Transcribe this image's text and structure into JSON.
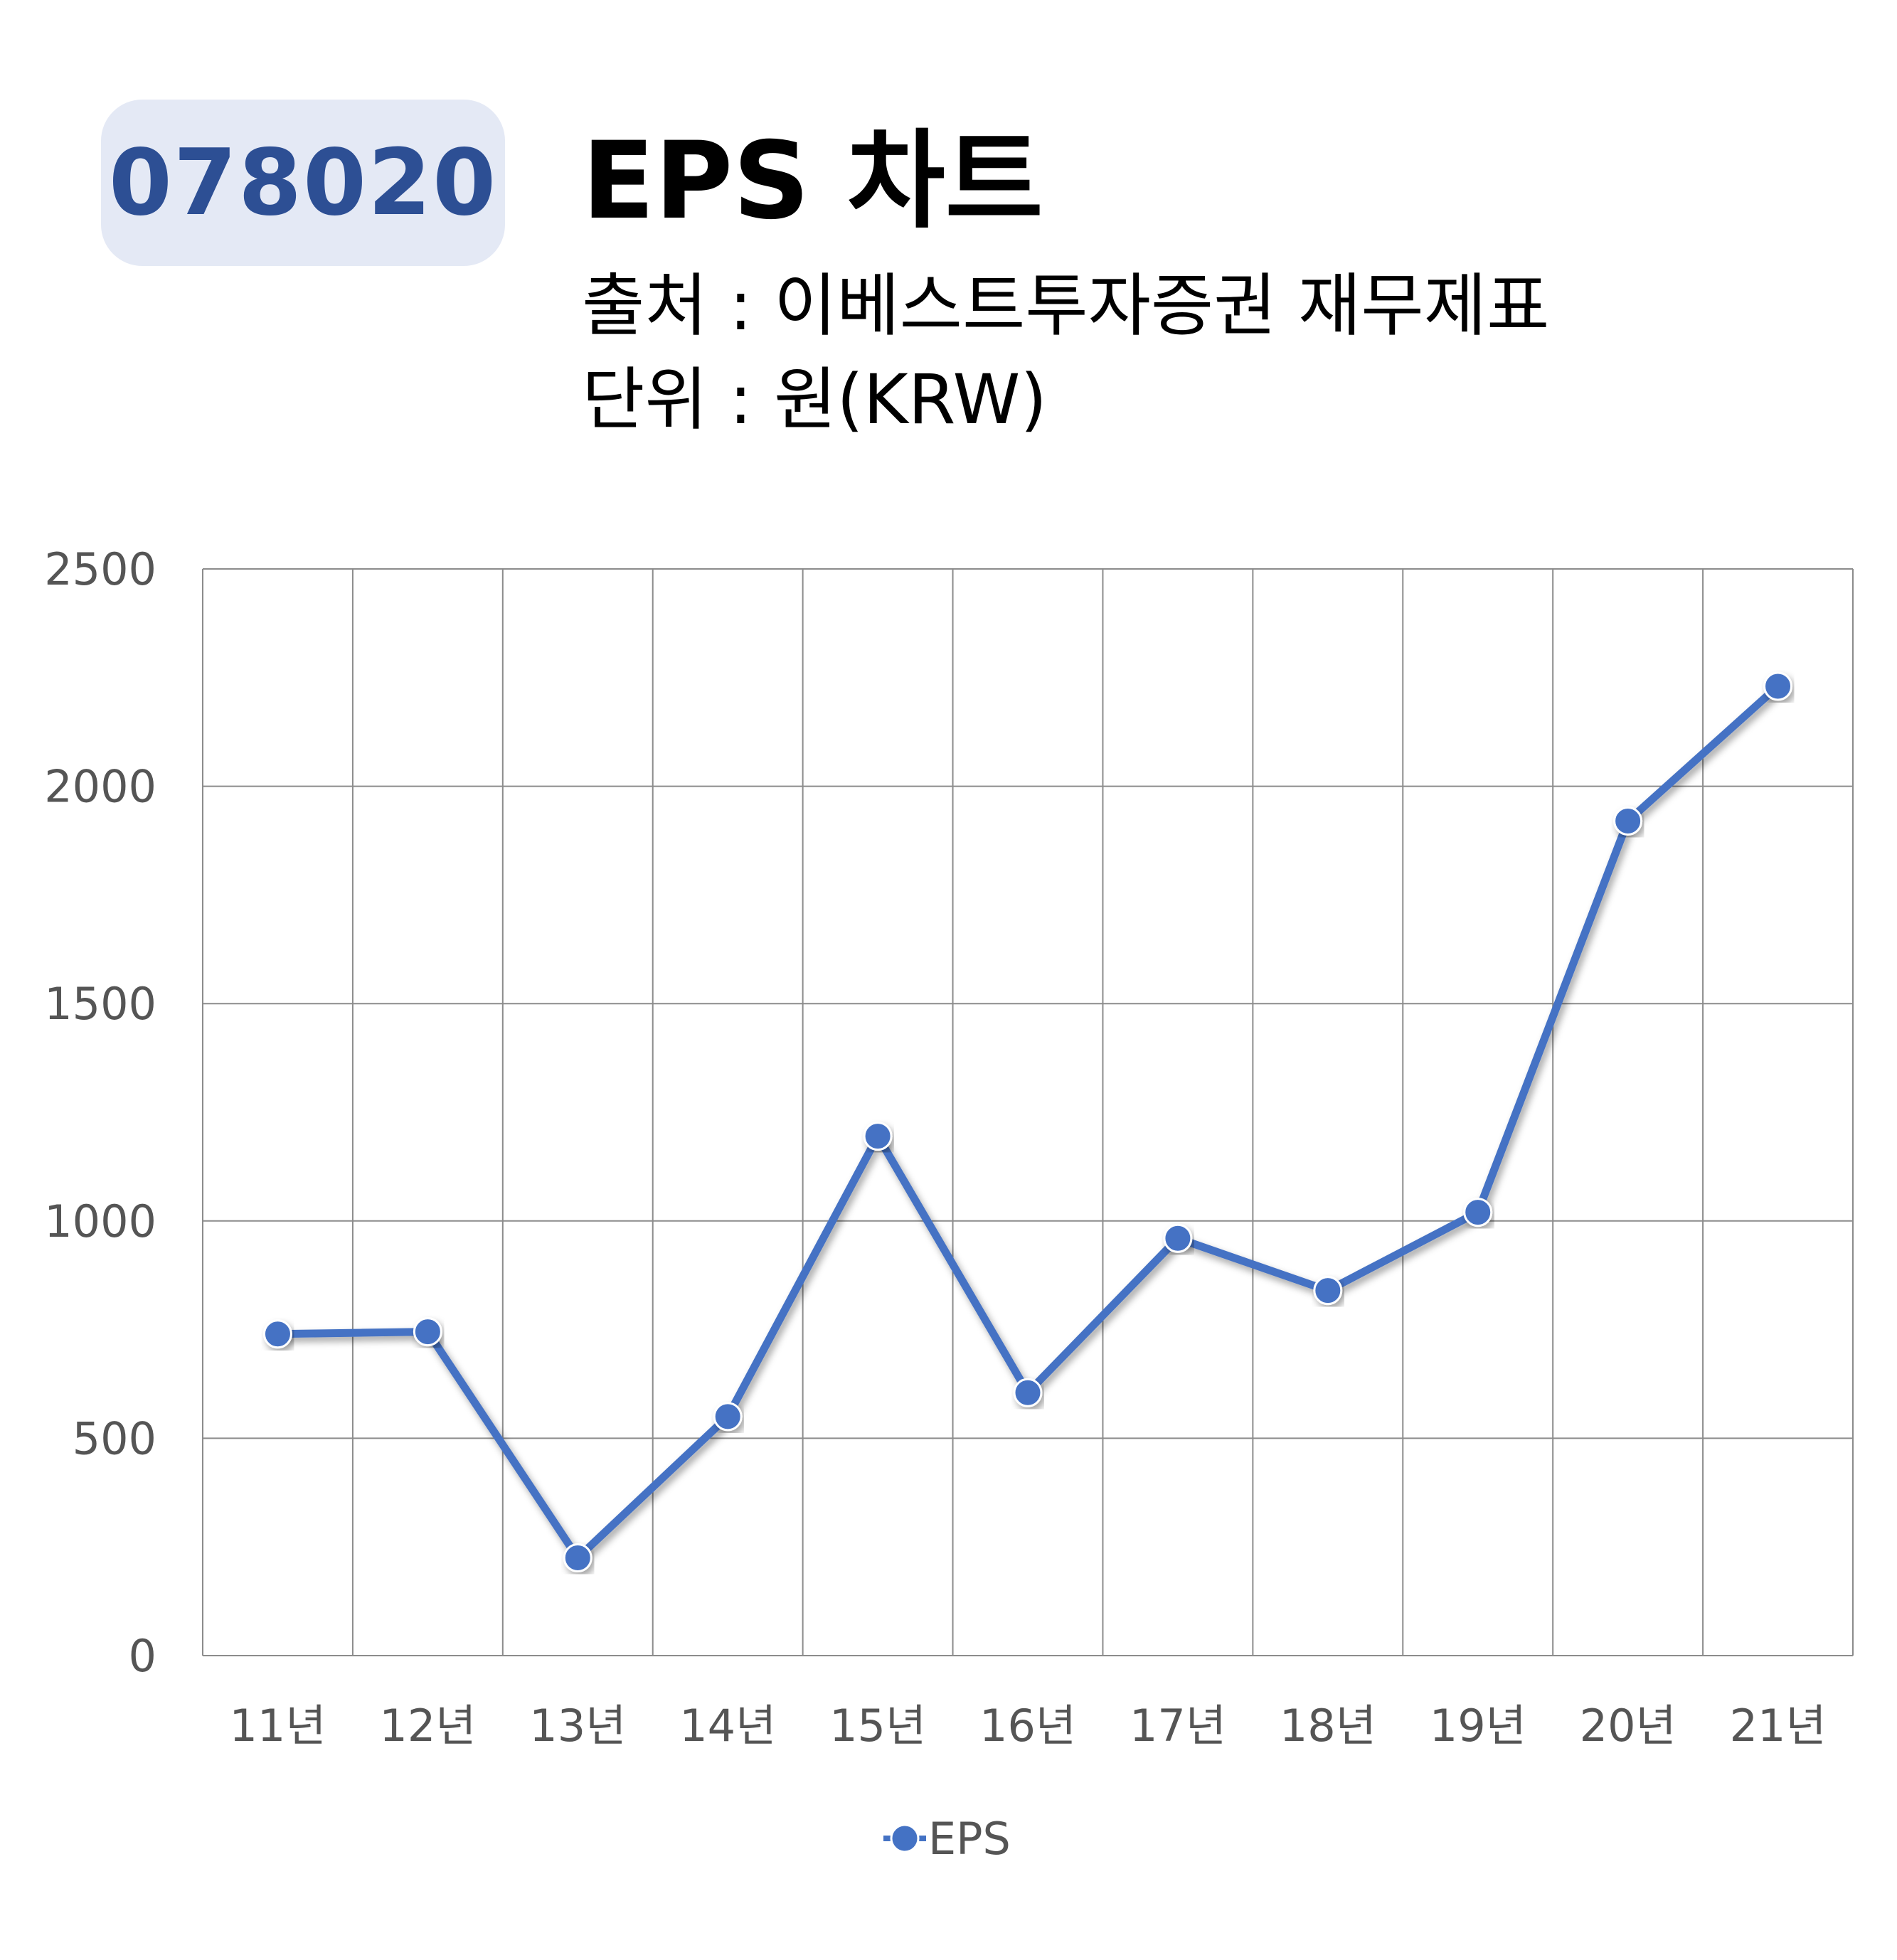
{
  "header": {
    "code": "078020",
    "title": "EPS 차트",
    "source": "출처 : 이베스트투자증권 재무제표",
    "unit": "단위 : 원(KRW)"
  },
  "chart_data": {
    "type": "line",
    "categories": [
      "11년",
      "12년",
      "13년",
      "14년",
      "15년",
      "16년",
      "17년",
      "18년",
      "19년",
      "20년",
      "21년"
    ],
    "series": [
      {
        "name": "EPS",
        "values": [
          740,
          745,
          225,
          550,
          1195,
          605,
          960,
          840,
          1020,
          1920,
          2230
        ],
        "color": "#4472c4"
      }
    ],
    "y_ticks": [
      "0",
      "500",
      "1000",
      "1500",
      "2000",
      "2500"
    ],
    "ylim": [
      0,
      2500
    ],
    "grid": true,
    "legend_position": "bottom-center"
  }
}
